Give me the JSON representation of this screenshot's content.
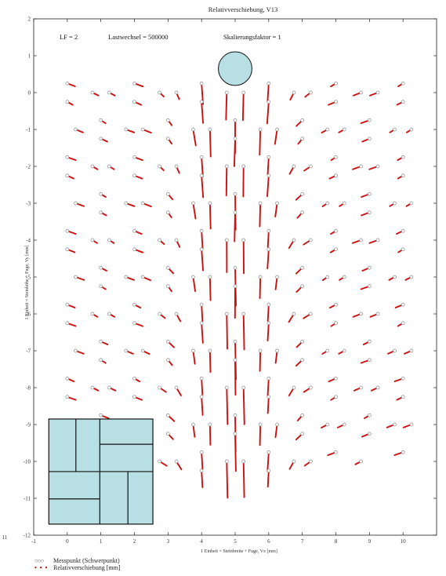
{
  "chart_data": {
    "type": "scatter",
    "title": "Relativverschiebung, V13",
    "xlabel": "1 Einheit = Steinbreite + Fuge, Vx [mm]",
    "ylabel": "1 Einheit = Steinhöhe + Fuge, Vy [mm]",
    "xlim": [
      -1,
      11
    ],
    "ylim": [
      -12,
      2
    ],
    "x_ticks": [
      "-1",
      "0",
      "1",
      "2",
      "3",
      "4",
      "5",
      "6",
      "7",
      "8",
      "9",
      "10"
    ],
    "y_ticks": [
      "2",
      "1",
      "0",
      "-1",
      "-2",
      "-3",
      "-4",
      "-5",
      "-6",
      "-7",
      "-8",
      "-9",
      "-10",
      "-11",
      "-12"
    ],
    "x_edge_label": "11",
    "grid": false,
    "annotations": {
      "lf": "LF = 2",
      "lastwechsel": "Lastwechsel = 500000",
      "skalierung": "Skalierungsfaktor = 1"
    },
    "legend": [
      {
        "symbol": "○○○",
        "label": "Messpunkt (Schwerpunkt)"
      },
      {
        "symbol": "• • •",
        "label": "Relativverschiebung [mm]"
      }
    ],
    "load_circle": {
      "x": 5,
      "y": 0.65,
      "r": 0.5
    },
    "brick_panel": {
      "x0": -0.55,
      "x1": 2.55,
      "y0": -11.7,
      "y1": -8.85
    },
    "colors": {
      "points": "#888888",
      "vectors": "#cc1010",
      "fill": "#b8dfe3"
    },
    "series": [
      {
        "name": "Messpunkt (Schwerpunkt)",
        "points": [
          [
            0,
            0.25
          ],
          [
            0,
            -0.25
          ],
          [
            0.75,
            0
          ],
          [
            1.25,
            0
          ],
          [
            2,
            0.25
          ],
          [
            2,
            -0.25
          ],
          [
            2.75,
            0
          ],
          [
            3.25,
            0
          ],
          [
            4,
            0.25
          ],
          [
            4,
            -0.25
          ],
          [
            4.75,
            0
          ],
          [
            5.25,
            0
          ],
          [
            6,
            0.25
          ],
          [
            6,
            -0.25
          ],
          [
            6.75,
            0
          ],
          [
            7.25,
            0
          ],
          [
            8,
            0.25
          ],
          [
            8,
            -0.25
          ],
          [
            8.75,
            0
          ],
          [
            9.25,
            0
          ],
          [
            10,
            0.25
          ],
          [
            10,
            -0.25
          ],
          [
            0.25,
            -1
          ],
          [
            1,
            -0.75
          ],
          [
            1,
            -1.25
          ],
          [
            1.75,
            -1
          ],
          [
            2.25,
            -1
          ],
          [
            3,
            -0.75
          ],
          [
            3,
            -1.25
          ],
          [
            3.75,
            -1
          ],
          [
            4.25,
            -1
          ],
          [
            5,
            -0.75
          ],
          [
            5,
            -1.25
          ],
          [
            5.75,
            -1
          ],
          [
            6.25,
            -1
          ],
          [
            7,
            -0.75
          ],
          [
            7,
            -1.25
          ],
          [
            7.75,
            -1
          ],
          [
            8.25,
            -1
          ],
          [
            9,
            -0.75
          ],
          [
            9,
            -1.25
          ],
          [
            9.75,
            -1
          ],
          [
            10.25,
            -1
          ],
          [
            0,
            -1.75
          ],
          [
            0,
            -2.25
          ],
          [
            0.75,
            -2
          ],
          [
            1.25,
            -2
          ],
          [
            2,
            -1.75
          ],
          [
            2,
            -2.25
          ],
          [
            2.75,
            -2
          ],
          [
            3.25,
            -2
          ],
          [
            4,
            -1.75
          ],
          [
            4,
            -2.25
          ],
          [
            4.75,
            -2
          ],
          [
            5.25,
            -2
          ],
          [
            6,
            -1.75
          ],
          [
            6,
            -2.25
          ],
          [
            6.75,
            -2
          ],
          [
            7.25,
            -2
          ],
          [
            8,
            -1.75
          ],
          [
            8,
            -2.25
          ],
          [
            8.75,
            -2
          ],
          [
            9.25,
            -2
          ],
          [
            10,
            -1.75
          ],
          [
            10,
            -2.25
          ],
          [
            0.25,
            -3
          ],
          [
            1,
            -2.75
          ],
          [
            1,
            -3.25
          ],
          [
            1.75,
            -3
          ],
          [
            2.25,
            -3
          ],
          [
            3,
            -2.75
          ],
          [
            3,
            -3.25
          ],
          [
            3.75,
            -3
          ],
          [
            4.25,
            -3
          ],
          [
            5,
            -2.75
          ],
          [
            5,
            -3.25
          ],
          [
            5.75,
            -3
          ],
          [
            6.25,
            -3
          ],
          [
            7,
            -2.75
          ],
          [
            7,
            -3.25
          ],
          [
            7.75,
            -3
          ],
          [
            8.25,
            -3
          ],
          [
            9,
            -2.75
          ],
          [
            9,
            -3.25
          ],
          [
            9.75,
            -3
          ],
          [
            10.25,
            -3
          ],
          [
            0,
            -3.75
          ],
          [
            0,
            -4.25
          ],
          [
            0.75,
            -4
          ],
          [
            1.25,
            -4
          ],
          [
            2,
            -3.75
          ],
          [
            2,
            -4.25
          ],
          [
            2.75,
            -4
          ],
          [
            3.25,
            -4
          ],
          [
            4,
            -3.75
          ],
          [
            4,
            -4.25
          ],
          [
            4.75,
            -4
          ],
          [
            5.25,
            -4
          ],
          [
            6,
            -3.75
          ],
          [
            6,
            -4.25
          ],
          [
            6.75,
            -4
          ],
          [
            7.25,
            -4
          ],
          [
            8,
            -3.75
          ],
          [
            8,
            -4.25
          ],
          [
            8.75,
            -4
          ],
          [
            9.25,
            -4
          ],
          [
            10,
            -3.75
          ],
          [
            10,
            -4.25
          ],
          [
            0.25,
            -5
          ],
          [
            1,
            -4.75
          ],
          [
            1,
            -5.25
          ],
          [
            1.75,
            -5
          ],
          [
            2.25,
            -5
          ],
          [
            3,
            -4.75
          ],
          [
            3,
            -5.25
          ],
          [
            3.75,
            -5
          ],
          [
            4.25,
            -5
          ],
          [
            5,
            -4.75
          ],
          [
            5,
            -5.25
          ],
          [
            5.75,
            -5
          ],
          [
            6.25,
            -5
          ],
          [
            7,
            -4.75
          ],
          [
            7,
            -5.25
          ],
          [
            7.75,
            -5
          ],
          [
            8.25,
            -5
          ],
          [
            9,
            -4.75
          ],
          [
            9,
            -5.25
          ],
          [
            9.75,
            -5
          ],
          [
            10.25,
            -5
          ],
          [
            0,
            -5.75
          ],
          [
            0,
            -6.25
          ],
          [
            0.75,
            -6
          ],
          [
            1.25,
            -6
          ],
          [
            2,
            -5.75
          ],
          [
            2,
            -6.25
          ],
          [
            2.75,
            -6
          ],
          [
            3.25,
            -6
          ],
          [
            4,
            -5.75
          ],
          [
            4,
            -6.25
          ],
          [
            4.75,
            -6
          ],
          [
            5.25,
            -6
          ],
          [
            6,
            -5.75
          ],
          [
            6,
            -6.25
          ],
          [
            6.75,
            -6
          ],
          [
            7.25,
            -6
          ],
          [
            8,
            -5.75
          ],
          [
            8,
            -6.25
          ],
          [
            8.75,
            -6
          ],
          [
            9.25,
            -6
          ],
          [
            10,
            -5.75
          ],
          [
            10,
            -6.25
          ],
          [
            0.25,
            -7
          ],
          [
            1,
            -6.75
          ],
          [
            1,
            -7.25
          ],
          [
            1.75,
            -7
          ],
          [
            2.25,
            -7
          ],
          [
            3,
            -6.75
          ],
          [
            3,
            -7.25
          ],
          [
            3.75,
            -7
          ],
          [
            4.25,
            -7
          ],
          [
            5,
            -6.75
          ],
          [
            5,
            -7.25
          ],
          [
            5.75,
            -7
          ],
          [
            6.25,
            -7
          ],
          [
            7,
            -6.75
          ],
          [
            7,
            -7.25
          ],
          [
            7.75,
            -7
          ],
          [
            8.25,
            -7
          ],
          [
            9,
            -6.75
          ],
          [
            9,
            -7.25
          ],
          [
            9.75,
            -7
          ],
          [
            10.25,
            -7
          ],
          [
            0,
            -7.75
          ],
          [
            0,
            -8.25
          ],
          [
            0.75,
            -8
          ],
          [
            1.25,
            -8
          ],
          [
            2,
            -7.75
          ],
          [
            2,
            -8.25
          ],
          [
            2.75,
            -8
          ],
          [
            3.25,
            -8
          ],
          [
            4,
            -7.75
          ],
          [
            4,
            -8.25
          ],
          [
            4.75,
            -8
          ],
          [
            5.25,
            -8
          ],
          [
            6,
            -7.75
          ],
          [
            6,
            -8.25
          ],
          [
            6.75,
            -8
          ],
          [
            7.25,
            -8
          ],
          [
            8,
            -7.75
          ],
          [
            8,
            -8.25
          ],
          [
            8.75,
            -8
          ],
          [
            9.25,
            -8
          ],
          [
            10,
            -7.75
          ],
          [
            10,
            -8.25
          ],
          [
            1,
            -8.75
          ],
          [
            1,
            -9.25
          ],
          [
            1.75,
            -9
          ],
          [
            2.25,
            -9
          ],
          [
            3,
            -8.75
          ],
          [
            3,
            -9.25
          ],
          [
            3.75,
            -9
          ],
          [
            4.25,
            -9
          ],
          [
            5,
            -8.75
          ],
          [
            5,
            -9.25
          ],
          [
            5.75,
            -9
          ],
          [
            6.25,
            -9
          ],
          [
            7,
            -8.75
          ],
          [
            7,
            -9.25
          ],
          [
            7.75,
            -9
          ],
          [
            8.25,
            -9
          ],
          [
            9,
            -8.75
          ],
          [
            9,
            -9.25
          ],
          [
            9.75,
            -9
          ],
          [
            10.25,
            -9
          ],
          [
            2.75,
            -10
          ],
          [
            3.25,
            -10
          ],
          [
            4,
            -9.75
          ],
          [
            4,
            -10.25
          ],
          [
            4.75,
            -10
          ],
          [
            5.25,
            -10
          ],
          [
            6,
            -9.75
          ],
          [
            6,
            -10.25
          ],
          [
            6.75,
            -10
          ],
          [
            7.25,
            -10
          ],
          [
            8,
            -9.75
          ],
          [
            8.75,
            -10
          ],
          [
            10,
            -9.75
          ]
        ]
      },
      {
        "name": "Relativverschiebung [mm]",
        "vectors_note": "dx, dy in mm from each Messpunkt",
        "field": {
          "center_x": 5,
          "peak_dy": -0.95,
          "edge_dx": 0.28
        }
      }
    ]
  }
}
